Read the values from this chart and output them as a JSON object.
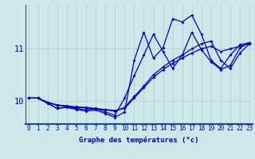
{
  "xlabel": "Graphe des températures (°c)",
  "background_color": "#cce8e8",
  "line_color": "#0000bb",
  "x_ticks": [
    0,
    1,
    2,
    3,
    4,
    5,
    6,
    7,
    8,
    9,
    10,
    11,
    12,
    13,
    14,
    15,
    16,
    17,
    18,
    19,
    20,
    21,
    22,
    23
  ],
  "y_ticks": [
    10,
    11
  ],
  "ylim": [
    9.55,
    11.85
  ],
  "xlim": [
    -0.3,
    23.3
  ],
  "series": [
    [
      10.05,
      10.05,
      9.97,
      9.92,
      9.9,
      9.88,
      9.87,
      9.85,
      9.83,
      9.81,
      9.85,
      10.05,
      10.25,
      10.45,
      10.6,
      10.72,
      10.82,
      10.92,
      11.0,
      11.05,
      10.95,
      11.0,
      11.05,
      11.1
    ],
    [
      10.05,
      10.05,
      9.96,
      9.91,
      9.89,
      9.87,
      9.86,
      9.84,
      9.82,
      9.8,
      9.87,
      10.08,
      10.28,
      10.5,
      10.65,
      10.78,
      10.88,
      11.0,
      11.1,
      11.15,
      10.78,
      10.62,
      10.92,
      11.1
    ],
    [
      10.05,
      10.05,
      9.95,
      9.85,
      9.88,
      9.85,
      9.82,
      9.85,
      9.78,
      9.72,
      10.05,
      10.48,
      10.88,
      11.28,
      10.95,
      10.62,
      10.88,
      11.32,
      10.98,
      10.75,
      10.6,
      10.68,
      11.02,
      11.12
    ],
    [
      10.05,
      10.05,
      9.95,
      9.85,
      9.87,
      9.83,
      9.8,
      9.82,
      9.75,
      9.68,
      9.78,
      10.78,
      11.32,
      10.82,
      11.02,
      11.58,
      11.52,
      11.65,
      11.28,
      10.78,
      10.62,
      10.88,
      11.08,
      11.12
    ]
  ],
  "gridcolor": "#b0cccc",
  "axisline_color": "#555555",
  "tick_fontsize": 5.5,
  "xlabel_fontsize": 6.5
}
